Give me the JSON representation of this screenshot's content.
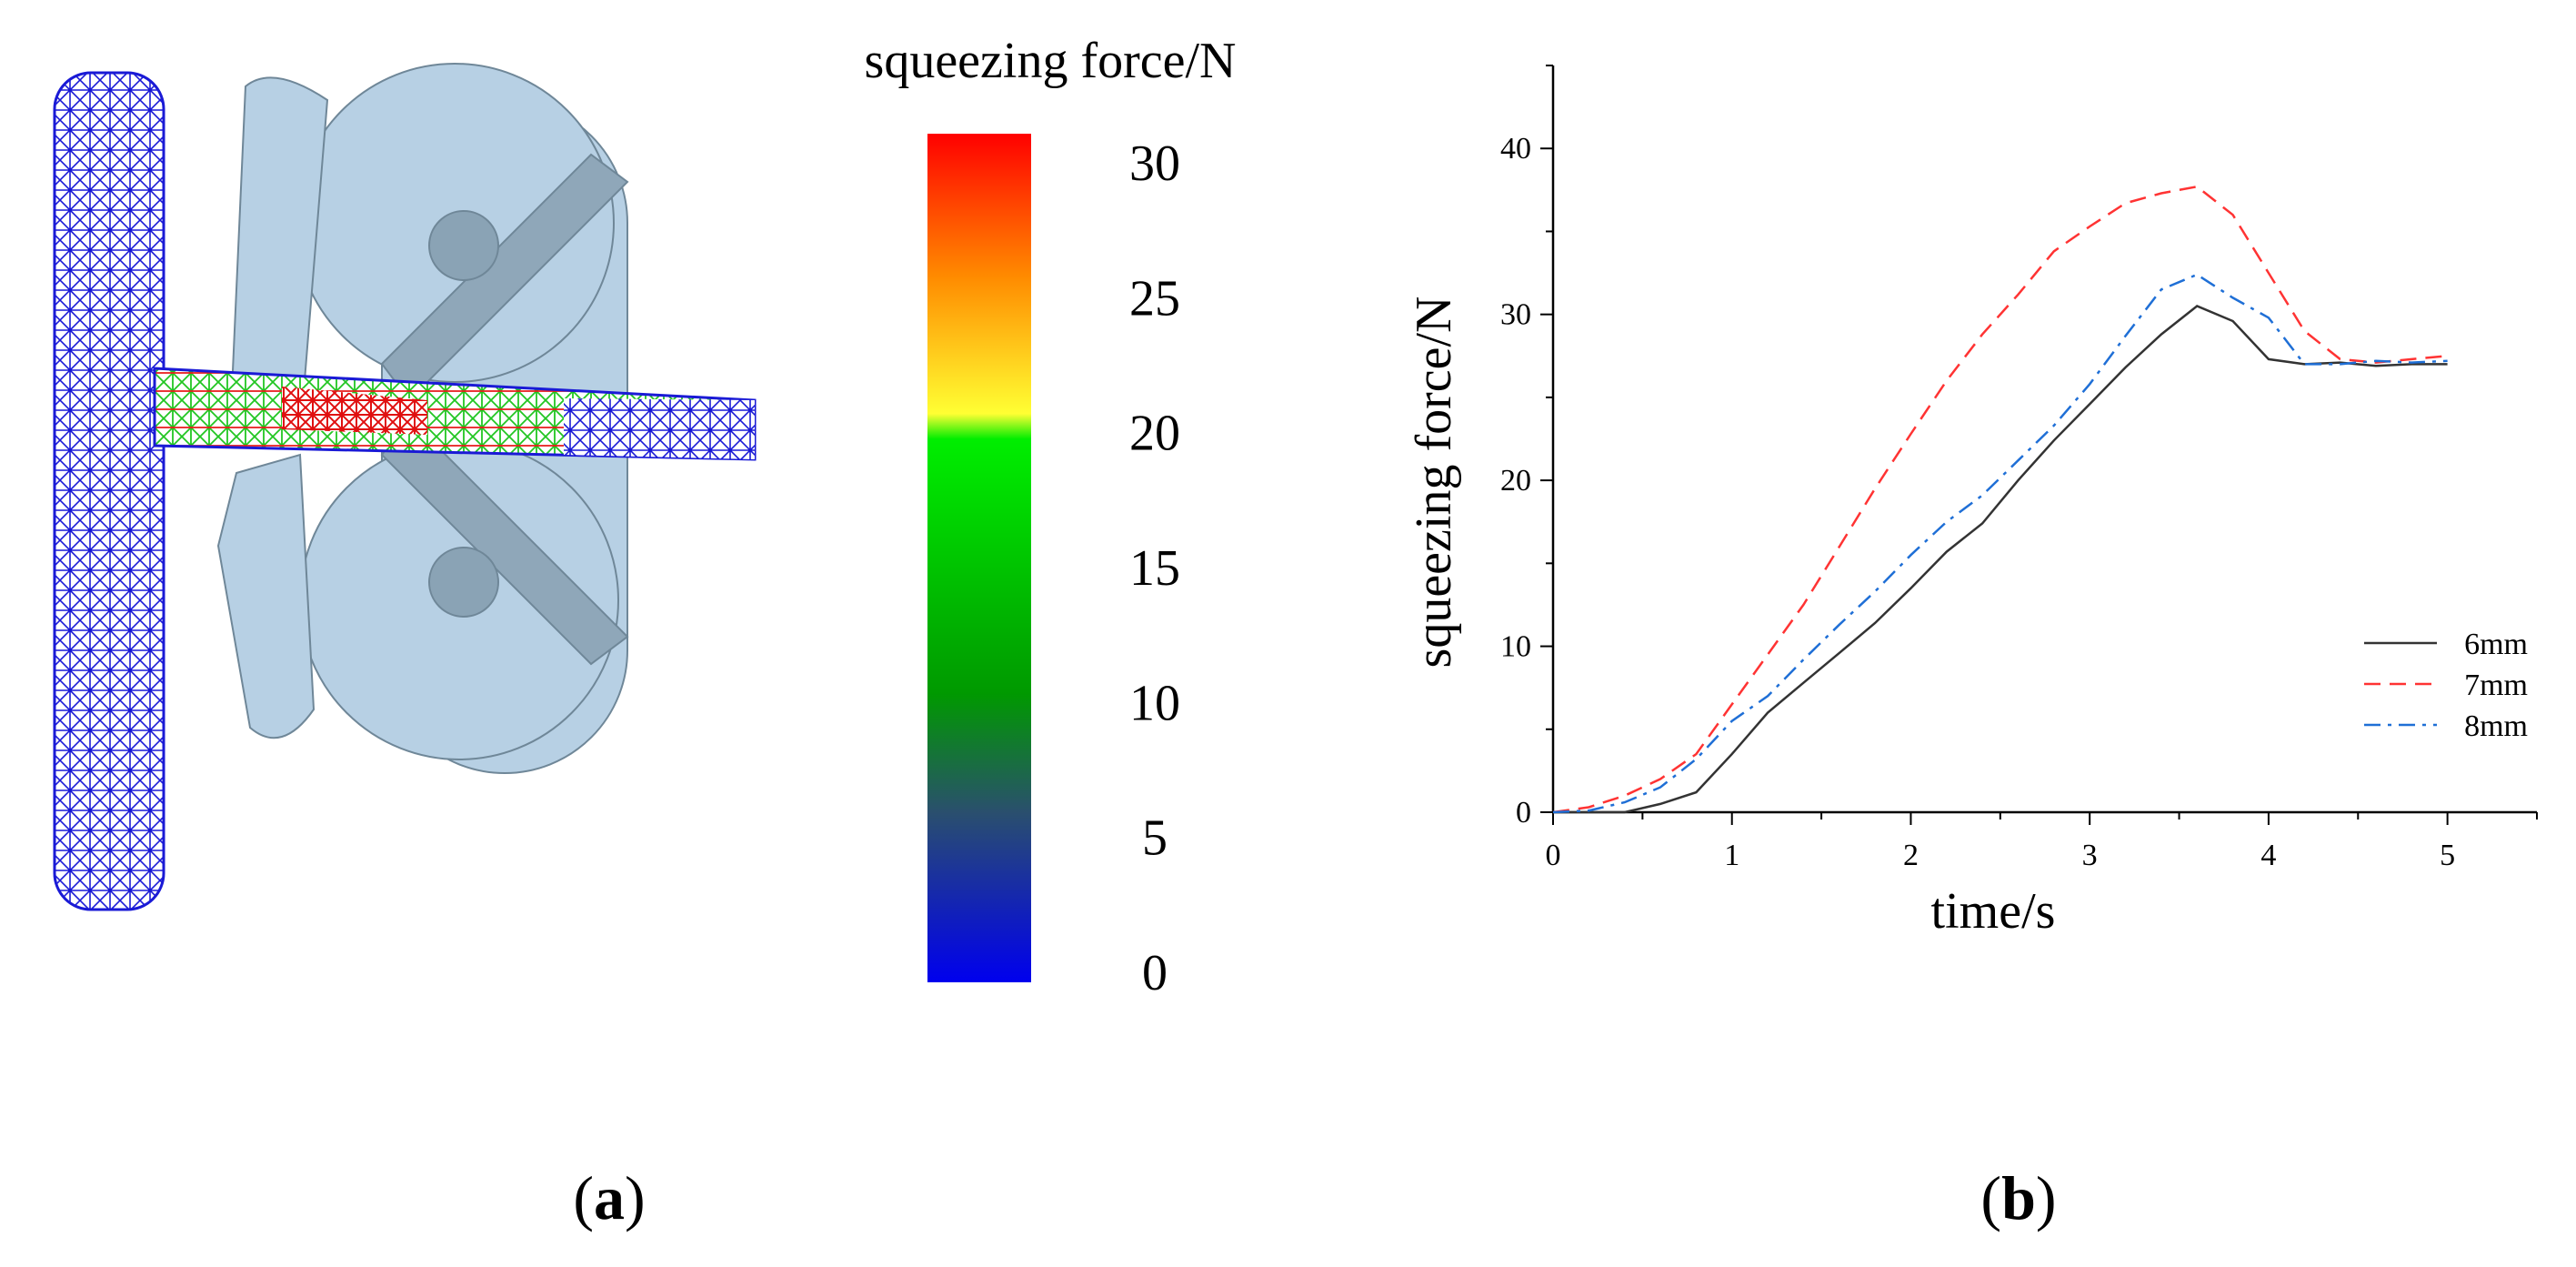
{
  "panel_a": {
    "label_open": "(",
    "label_letter": "a",
    "label_close": ")",
    "colorbar": {
      "title": "squeezing force/N",
      "ticks": [
        "30",
        "25",
        "20",
        "15",
        "10",
        "5",
        "0"
      ],
      "range": [
        0,
        30
      ],
      "colors": [
        "#ff0000",
        "#ff8c00",
        "#ffff33",
        "#00ee00",
        "#009900",
        "#2a4f6e",
        "#0000ee"
      ]
    }
  },
  "panel_b": {
    "label_open": "(",
    "label_letter": "b",
    "label_close": ")"
  },
  "chart_data": {
    "type": "line",
    "title": "",
    "xlabel": "time/s",
    "ylabel": "squeezing force/N",
    "xlim": [
      0,
      5.5
    ],
    "ylim": [
      0,
      45
    ],
    "xticks": [
      "0",
      "1",
      "2",
      "3",
      "4",
      "5"
    ],
    "yticks": [
      "0",
      "10",
      "20",
      "30",
      "40"
    ],
    "legend_position": "bottom-right",
    "series": [
      {
        "name": "6mm",
        "color": "#333333",
        "dash": "solid",
        "x": [
          0,
          0.2,
          0.4,
          0.6,
          0.8,
          1.0,
          1.2,
          1.4,
          1.6,
          1.8,
          2.0,
          2.2,
          2.4,
          2.6,
          2.8,
          3.0,
          3.2,
          3.4,
          3.6,
          3.8,
          4.0,
          4.2,
          4.4,
          4.6,
          4.8,
          5.0
        ],
        "y": [
          0,
          0,
          0,
          0.5,
          1.2,
          3.5,
          6.0,
          7.8,
          9.6,
          11.4,
          13.5,
          15.7,
          17.4,
          20.0,
          22.4,
          24.6,
          26.8,
          28.8,
          30.5,
          29.6,
          27.3,
          27.0,
          27.1,
          26.9,
          27.0,
          27.0
        ]
      },
      {
        "name": "7mm",
        "color": "#ff3333",
        "dash": "dashed",
        "x": [
          0,
          0.2,
          0.4,
          0.6,
          0.8,
          1.0,
          1.2,
          1.4,
          1.6,
          1.8,
          2.0,
          2.2,
          2.4,
          2.6,
          2.8,
          3.0,
          3.2,
          3.4,
          3.6,
          3.8,
          4.0,
          4.2,
          4.4,
          4.6,
          4.8,
          5.0
        ],
        "y": [
          0,
          0.3,
          1.0,
          2.0,
          3.5,
          6.5,
          9.5,
          12.5,
          16.0,
          19.5,
          22.8,
          26.0,
          28.8,
          31.2,
          33.8,
          35.3,
          36.7,
          37.3,
          37.7,
          36.0,
          32.5,
          29.0,
          27.3,
          27.1,
          27.3,
          27.5
        ]
      },
      {
        "name": "8mm",
        "color": "#1f6fd6",
        "dash": "dash-dot",
        "x": [
          0,
          0.2,
          0.4,
          0.6,
          0.8,
          1.0,
          1.2,
          1.4,
          1.6,
          1.8,
          2.0,
          2.2,
          2.4,
          2.6,
          2.8,
          3.0,
          3.2,
          3.4,
          3.6,
          3.8,
          4.0,
          4.2,
          4.4,
          4.6,
          4.8,
          5.0
        ],
        "y": [
          0,
          0.1,
          0.6,
          1.5,
          3.2,
          5.5,
          7.0,
          9.2,
          11.3,
          13.3,
          15.5,
          17.5,
          19.1,
          21.2,
          23.3,
          25.8,
          28.7,
          31.5,
          32.4,
          31.0,
          29.8,
          27.0,
          27.0,
          27.2,
          27.1,
          27.2
        ]
      }
    ]
  }
}
